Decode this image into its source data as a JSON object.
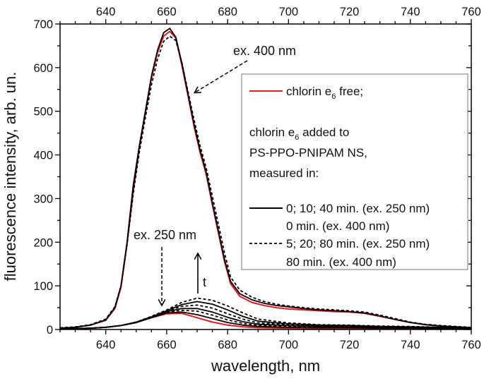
{
  "chart_data": {
    "type": "line",
    "xlabel": "wavelength, nm",
    "ylabel": "fluorescence intensity, arb. un.",
    "xlim": [
      625,
      760
    ],
    "ylim": [
      0,
      700
    ],
    "xticks": [
      640,
      660,
      680,
      700,
      720,
      740,
      760
    ],
    "yticks": [
      0,
      100,
      200,
      300,
      400,
      500,
      600,
      700
    ],
    "top_axis_ticks": true,
    "grid": false,
    "legend_placement": "right",
    "colors": {
      "red": "#e41a1c",
      "black": "#000000"
    },
    "x_ex400": [
      625,
      630,
      635,
      640,
      643,
      645,
      647,
      649,
      651,
      653,
      655,
      657,
      659,
      661,
      663,
      665,
      667,
      669,
      671,
      673,
      675,
      677,
      679,
      681,
      684,
      688,
      692,
      696,
      700,
      705,
      710,
      715,
      720,
      725,
      730,
      735,
      740,
      745,
      750,
      755,
      760
    ],
    "x_ex250": [
      625,
      630,
      635,
      640,
      645,
      650,
      655,
      660,
      665,
      670,
      675,
      680,
      685,
      690,
      700,
      710,
      720,
      730,
      740,
      750,
      760
    ],
    "series": [
      {
        "group": "ex400",
        "style": "red",
        "values": [
          3,
          5,
          10,
          21,
          48,
          96,
          195,
          315,
          415,
          495,
          575,
          635,
          672,
          683,
          668,
          605,
          535,
          465,
          405,
          355,
          285,
          220,
          155,
          105,
          76,
          62,
          55,
          50,
          47,
          45,
          43,
          41,
          40,
          37,
          30,
          23,
          16,
          11,
          8,
          6,
          4
        ]
      },
      {
        "group": "ex400",
        "style": "solid",
        "values": [
          3,
          5,
          10,
          22,
          50,
          100,
          200,
          330,
          420,
          500,
          580,
          640,
          680,
          690,
          670,
          610,
          540,
          470,
          410,
          360,
          290,
          225,
          160,
          110,
          82,
          68,
          60,
          55,
          52,
          48,
          45,
          43,
          41,
          38,
          31,
          23,
          16,
          11,
          8,
          6,
          4
        ]
      },
      {
        "group": "ex400",
        "style": "dashed",
        "values": [
          4,
          6,
          11,
          24,
          52,
          100,
          195,
          310,
          405,
          485,
          560,
          620,
          660,
          672,
          662,
          612,
          545,
          480,
          420,
          370,
          305,
          240,
          175,
          120,
          90,
          74,
          64,
          58,
          54,
          50,
          47,
          45,
          43,
          40,
          33,
          25,
          17,
          12,
          9,
          7,
          5
        ]
      },
      {
        "group": "ex250",
        "style": "red",
        "values": [
          1,
          2,
          3,
          5,
          9,
          16,
          27,
          36,
          37,
          27,
          17,
          10,
          6,
          4,
          3,
          2,
          2,
          2,
          1,
          1,
          1
        ]
      },
      {
        "group": "ex250",
        "style": "solid",
        "values": [
          1,
          2,
          3,
          5,
          9,
          16,
          27,
          38,
          40,
          34,
          25,
          16,
          10,
          7,
          5,
          4,
          4,
          3,
          3,
          2,
          2
        ]
      },
      {
        "group": "ex250",
        "style": "dashed",
        "values": [
          1,
          2,
          3,
          5,
          9,
          16,
          28,
          40,
          44,
          42,
          33,
          22,
          14,
          9,
          7,
          6,
          5,
          4,
          4,
          3,
          2
        ]
      },
      {
        "group": "ex250",
        "style": "solid",
        "values": [
          1,
          2,
          3,
          5,
          9,
          16,
          28,
          41,
          48,
          48,
          40,
          28,
          18,
          12,
          9,
          7,
          6,
          5,
          4,
          3,
          3
        ]
      },
      {
        "group": "ex250",
        "style": "dashed",
        "values": [
          1,
          2,
          3,
          5,
          9,
          17,
          29,
          42,
          53,
          56,
          49,
          36,
          24,
          15,
          11,
          9,
          8,
          6,
          5,
          4,
          3
        ]
      },
      {
        "group": "ex250",
        "style": "solid",
        "values": [
          1,
          2,
          3,
          5,
          9,
          17,
          29,
          43,
          57,
          64,
          58,
          45,
          30,
          19,
          13,
          10,
          9,
          7,
          6,
          5,
          4
        ]
      },
      {
        "group": "ex250",
        "style": "dashed",
        "values": [
          1,
          2,
          3,
          5,
          9,
          17,
          30,
          45,
          62,
          72,
          67,
          54,
          38,
          24,
          15,
          11,
          10,
          8,
          7,
          5,
          4
        ]
      }
    ],
    "annotations": {
      "ex400": "ex. 400 nm",
      "ex250": "ex. 250 nm",
      "time": "t"
    },
    "legend": {
      "free": {
        "pre": "chlorin e",
        "sub": "6",
        "post": " free;"
      },
      "added": {
        "pre": "chlorin e",
        "sub": "6",
        "post": " added to"
      },
      "ns": "PS-PPO-PNIPAM NS,",
      "measured": "measured in:",
      "solid_1": "0; 10; 40 min. (ex. 250 nm)",
      "solid_2": "0 min. (ex. 400 nm)",
      "dashed_1": "5; 20; 80 min. (ex. 250 nm)",
      "dashed_2": "80 min. (ex. 400 nm)"
    }
  }
}
